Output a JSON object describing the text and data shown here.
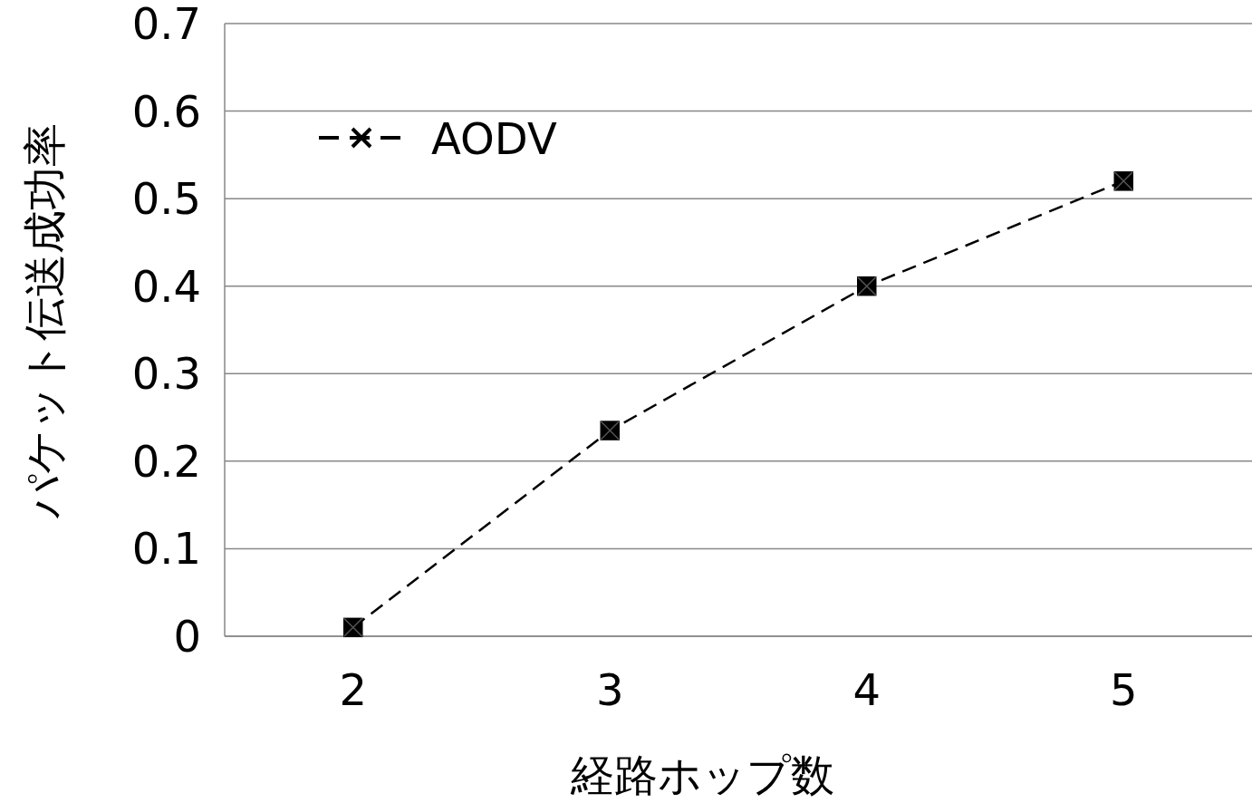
{
  "chart_data": {
    "type": "line",
    "xlabel": "経路ホップ数",
    "ylabel": "パケット伝送成功率",
    "categories": [
      "2",
      "3",
      "4",
      "5"
    ],
    "series": [
      {
        "name": "AODV",
        "color": "#000000",
        "values": [
          0.01,
          0.235,
          0.4,
          0.52
        ]
      }
    ],
    "ylim": [
      0,
      0.7
    ],
    "yticks": [
      0,
      0.1,
      0.2,
      0.3,
      0.4,
      0.5,
      0.6,
      0.7
    ],
    "grid": "y",
    "legend": "top left",
    "marker": "square",
    "line_style": "dashed"
  }
}
